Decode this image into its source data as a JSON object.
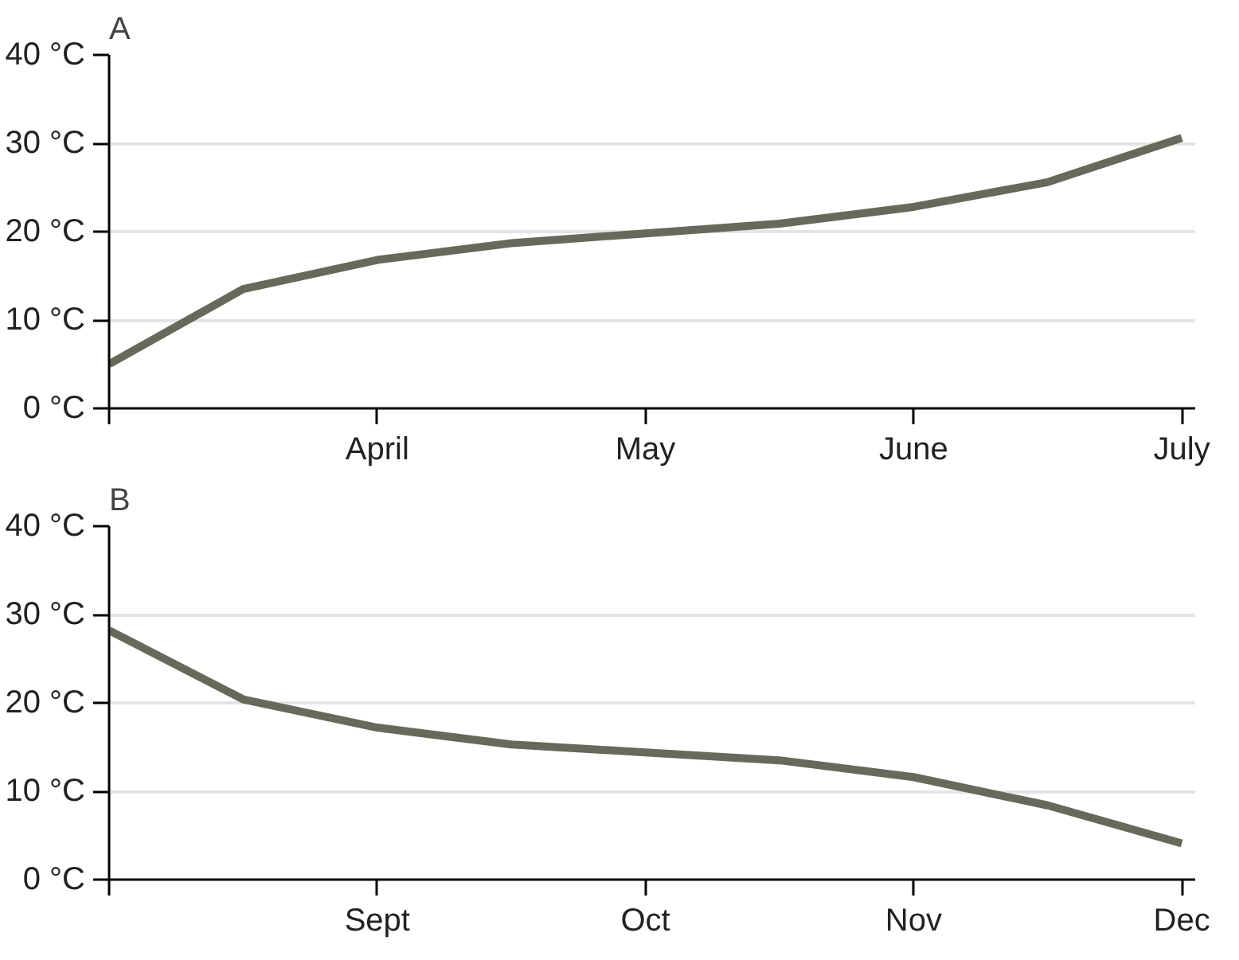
{
  "chart_data": [
    {
      "type": "line",
      "title": "A",
      "categories": [
        null,
        null,
        "April",
        null,
        "May",
        null,
        "June",
        null,
        "July"
      ],
      "series": [
        {
          "color": "#67695a",
          "values": [
            5,
            13.5,
            16.8,
            18.7,
            19.8,
            20.9,
            22.8,
            25.6,
            30.6
          ]
        }
      ],
      "ylim": [
        0,
        40
      ],
      "yticks": [
        {
          "value": 0,
          "label": "0 °C"
        },
        {
          "value": 10,
          "label": "10 °C"
        },
        {
          "value": 20,
          "label": "20 °C"
        },
        {
          "value": 30,
          "label": "30 °C"
        },
        {
          "value": 40,
          "label": "40 °C"
        }
      ],
      "grid": "y",
      "line_style": "solid"
    },
    {
      "type": "line",
      "title": "B",
      "categories": [
        null,
        null,
        "Sept",
        null,
        "Oct",
        null,
        "Nov",
        null,
        "Dec"
      ],
      "series": [
        {
          "color": "#67695a",
          "values": [
            28.2,
            20.4,
            17.2,
            15.3,
            14.4,
            13.5,
            11.6,
            8.4,
            4.1
          ]
        }
      ],
      "ylim": [
        0,
        40
      ],
      "yticks": [
        {
          "value": 0,
          "label": "0 °C"
        },
        {
          "value": 10,
          "label": "10 °C"
        },
        {
          "value": 20,
          "label": "20 °C"
        },
        {
          "value": 30,
          "label": "30 °C"
        },
        {
          "value": 40,
          "label": "40 °C"
        }
      ],
      "grid": "y",
      "line_style": "solid"
    }
  ]
}
